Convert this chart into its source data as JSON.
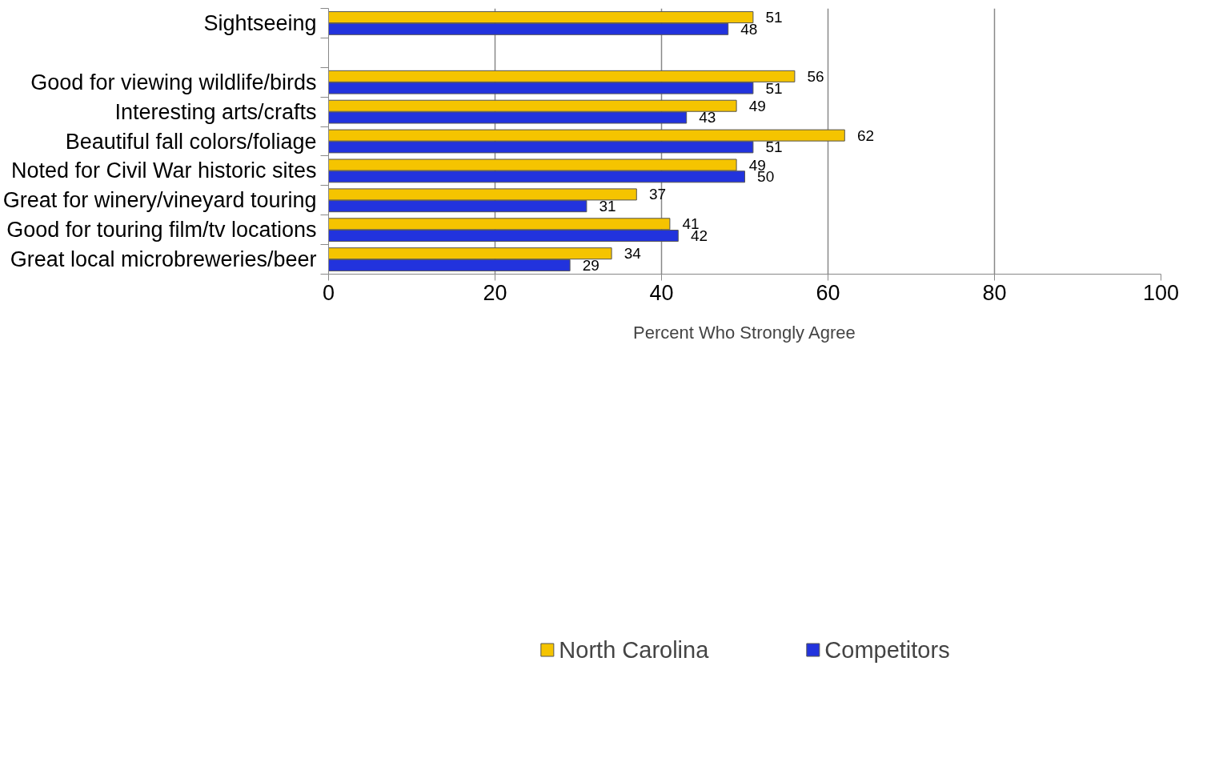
{
  "chart_data": {
    "type": "bar",
    "orientation": "horizontal",
    "categories": [
      "Sightseeing",
      null,
      "Good for viewing wildlife/birds",
      "Interesting arts/crafts",
      "Beautiful fall colors/foliage",
      "Noted for Civil War historic sites",
      "Great for winery/vineyard touring",
      "Good for touring film/tv locations",
      "Great local microbreweries/beer"
    ],
    "series": [
      {
        "name": "North Carolina",
        "color": "#f5c400",
        "values": [
          51,
          null,
          56,
          49,
          62,
          49,
          37,
          41,
          34
        ]
      },
      {
        "name": "Competitors",
        "color": "#2233dd",
        "values": [
          48,
          null,
          51,
          43,
          51,
          50,
          31,
          42,
          29
        ]
      }
    ],
    "xlim": [
      0,
      100
    ],
    "xticks": [
      0,
      20,
      40,
      60,
      80,
      100
    ],
    "xlabel": "Percent Who Strongly Agree",
    "grid": "x",
    "legend": "bottom",
    "data_labels": true
  }
}
